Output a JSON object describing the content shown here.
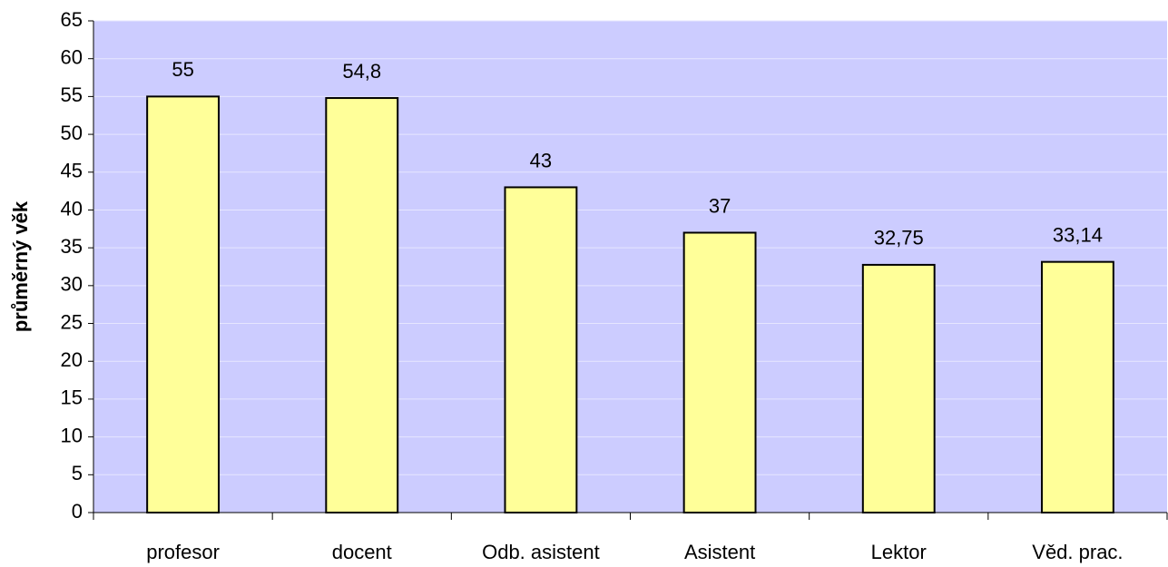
{
  "chart_data": {
    "type": "bar",
    "y_label": "průměrný věk",
    "categories": [
      "profesor",
      "docent",
      "Odb. asistent",
      "Asistent",
      "Lektor",
      "Věd. prac."
    ],
    "values": [
      55,
      54.8,
      43,
      37,
      32.75,
      33.14
    ],
    "value_labels": [
      "55",
      "54,8",
      "43",
      "37",
      "32,75",
      "33,14"
    ],
    "color": "#ffff99",
    "background": "#ccccff",
    "ylim": [
      0,
      65
    ],
    "yticks": [
      0,
      5,
      10,
      15,
      20,
      25,
      30,
      35,
      40,
      45,
      50,
      55,
      60,
      65
    ],
    "grid": true
  }
}
